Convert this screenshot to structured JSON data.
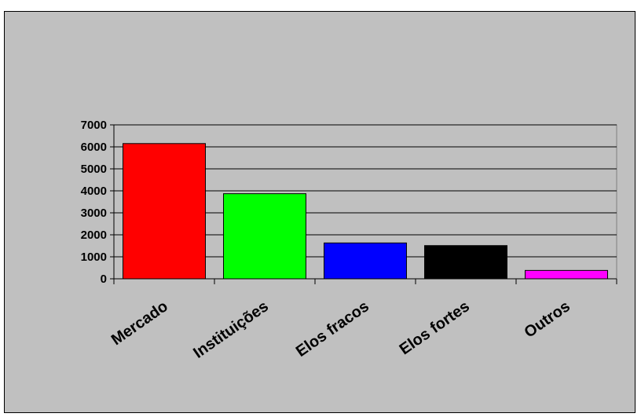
{
  "chart_data": {
    "type": "bar",
    "categories": [
      "Mercado",
      "Instituições",
      "Elos fracos",
      "Elos fortes",
      "Outros"
    ],
    "values": [
      6150,
      3870,
      1630,
      1510,
      380
    ],
    "colors": [
      "#ff0000",
      "#00ff00",
      "#0000ff",
      "#000000",
      "#ff00ff"
    ],
    "ylim": [
      0,
      7000
    ],
    "yticks": [
      0,
      1000,
      2000,
      3000,
      4000,
      5000,
      6000,
      7000
    ],
    "title": "",
    "xlabel": "",
    "ylabel": "",
    "grid": true,
    "legend": false,
    "plot_background": "#c0c0c0"
  }
}
